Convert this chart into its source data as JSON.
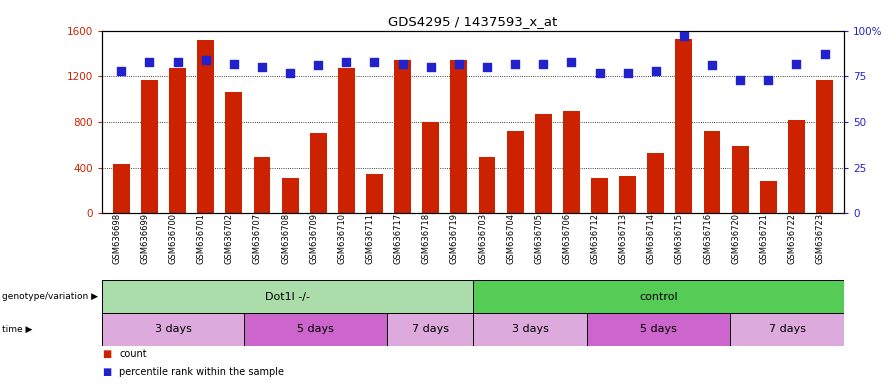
{
  "title": "GDS4295 / 1437593_x_at",
  "samples": [
    "GSM636698",
    "GSM636699",
    "GSM636700",
    "GSM636701",
    "GSM636702",
    "GSM636707",
    "GSM636708",
    "GSM636709",
    "GSM636710",
    "GSM636711",
    "GSM636717",
    "GSM636718",
    "GSM636719",
    "GSM636703",
    "GSM636704",
    "GSM636705",
    "GSM636706",
    "GSM636712",
    "GSM636713",
    "GSM636714",
    "GSM636715",
    "GSM636716",
    "GSM636720",
    "GSM636721",
    "GSM636722",
    "GSM636723"
  ],
  "counts": [
    430,
    1170,
    1270,
    1520,
    1060,
    490,
    310,
    700,
    1270,
    340,
    1340,
    800,
    1340,
    490,
    720,
    870,
    900,
    310,
    330,
    530,
    1530,
    720,
    590,
    280,
    820,
    1170
  ],
  "percentile_ranks": [
    78,
    83,
    83,
    84,
    82,
    80,
    77,
    81,
    83,
    83,
    82,
    80,
    82,
    80,
    82,
    82,
    83,
    77,
    77,
    78,
    97,
    81,
    73,
    73,
    82,
    87
  ],
  "bar_color": "#cc2200",
  "dot_color": "#2222cc",
  "left_ylim": [
    0,
    1600
  ],
  "right_ylim": [
    0,
    100
  ],
  "left_yticks": [
    0,
    400,
    800,
    1200,
    1600
  ],
  "right_yticks": [
    0,
    25,
    50,
    75,
    100
  ],
  "grid_values": [
    400,
    800,
    1200
  ],
  "geno_groups": [
    {
      "label": "Dot1l -/-",
      "color": "#aaddaa",
      "start": 0,
      "end": 13
    },
    {
      "label": "control",
      "color": "#55cc55",
      "start": 13,
      "end": 26
    }
  ],
  "time_groups": [
    {
      "label": "3 days",
      "color": "#ddaadd",
      "start": 0,
      "end": 5
    },
    {
      "label": "5 days",
      "color": "#cc66cc",
      "start": 5,
      "end": 10
    },
    {
      "label": "7 days",
      "color": "#ddaadd",
      "start": 10,
      "end": 13
    },
    {
      "label": "3 days",
      "color": "#ddaadd",
      "start": 13,
      "end": 17
    },
    {
      "label": "5 days",
      "color": "#cc66cc",
      "start": 17,
      "end": 22
    },
    {
      "label": "7 days",
      "color": "#ddaadd",
      "start": 22,
      "end": 26
    }
  ],
  "fig_width": 8.84,
  "fig_height": 3.84,
  "dpi": 100
}
